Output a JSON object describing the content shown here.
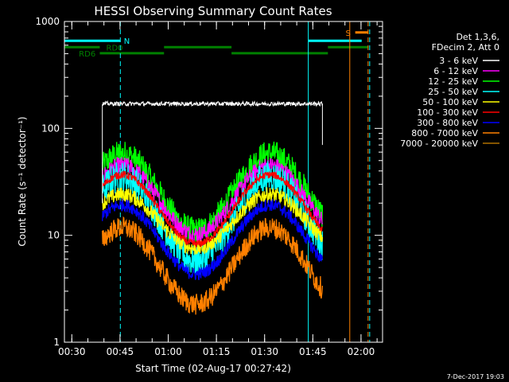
{
  "chart_data": {
    "type": "line",
    "title": "HESSI Observing Summary Count Rates",
    "xlabel": "Start Time (02-Aug-17 00:27:42)",
    "ylabel": "Count Rate (s⁻¹ detector⁻¹)",
    "x_unit": "minutes after 00:27:42",
    "xlim": [
      0,
      99
    ],
    "ylim": [
      1,
      1000
    ],
    "y_scale": "log",
    "x_ticks": [
      {
        "t": 2.3,
        "label": "00:30"
      },
      {
        "t": 17.3,
        "label": "00:45"
      },
      {
        "t": 32.3,
        "label": "01:00"
      },
      {
        "t": 47.3,
        "label": "01:15"
      },
      {
        "t": 62.3,
        "label": "01:30"
      },
      {
        "t": 77.3,
        "label": "01:45"
      },
      {
        "t": 92.3,
        "label": "02:00"
      }
    ],
    "y_ticks": [
      {
        "v": 1,
        "label": "1"
      },
      {
        "v": 10,
        "label": "10"
      },
      {
        "v": 100,
        "label": "100"
      },
      {
        "v": 1000,
        "label": "1000"
      }
    ],
    "legend_header": [
      "Det 1,3,6,",
      "FDecim 2, Att 0"
    ],
    "legend_position": "right",
    "series": [
      {
        "name": "3 - 6 keV",
        "color": "#ffffff",
        "base": 170,
        "amp": 0,
        "jitter": 0.04,
        "t0": 11.8,
        "t1": 80.3
      },
      {
        "name": "6 - 12 keV",
        "color": "#ff00ff",
        "base": 27,
        "amp": 0.45,
        "jitter": 0.16,
        "t0": 11.8,
        "t1": 80.3
      },
      {
        "name": "12 - 25 keV",
        "color": "#00ff00",
        "base": 32,
        "amp": 0.5,
        "jitter": 0.25,
        "t0": 11.8,
        "t1": 80.3
      },
      {
        "name": "25 - 50 keV",
        "color": "#00ffff",
        "base": 18,
        "amp": 0.55,
        "jitter": 0.3,
        "t0": 11.8,
        "t1": 80.3
      },
      {
        "name": "50 - 100 keV",
        "color": "#ffff00",
        "base": 17,
        "amp": 0.35,
        "jitter": 0.14,
        "t0": 11.8,
        "t1": 80.3
      },
      {
        "name": "100 - 300 keV",
        "color": "#ff0000",
        "base": 22,
        "amp": 0.45,
        "jitter": 0.07,
        "t0": 11.8,
        "t1": 80.3
      },
      {
        "name": "300 - 800 keV",
        "color": "#0000ff",
        "base": 11.5,
        "amp": 0.45,
        "jitter": 0.12,
        "t0": 11.8,
        "t1": 80.3
      },
      {
        "name": "800 - 7000 keV",
        "color": "#ff8000",
        "base": 6.5,
        "amp": 0.5,
        "jitter": 0.2,
        "t0": 11.8,
        "t1": 80.3
      },
      {
        "name": "7000 - 20000 keV",
        "color": "#b07000",
        "base": 0,
        "amp": 0,
        "jitter": 0,
        "t0": 0,
        "t1": 0
      }
    ],
    "cyan_vlines": [
      {
        "t": 0.0,
        "style": "solid"
      },
      {
        "t": 17.4,
        "style": "dashed"
      },
      {
        "t": 75.9,
        "style": "solid"
      },
      {
        "t": 95.0,
        "style": "dashed"
      }
    ],
    "orange_vlines": [
      {
        "t": 88.8,
        "style": "solid"
      },
      {
        "t": 94.5,
        "style": "dashed"
      }
    ],
    "flag_bars": [
      {
        "label": "N",
        "color": "#00ffff",
        "t0": 0.0,
        "t1": 17.4,
        "y_level": 660,
        "label_at": 18.5
      },
      {
        "label": "",
        "color": "#00ffff",
        "t0": 75.9,
        "t1": 92.5,
        "y_level": 660,
        "label_at": null
      },
      {
        "label": "S",
        "color": "#ff8000",
        "t0": 90.5,
        "t1": 94.5,
        "y_level": 790,
        "label_at": 87.5
      },
      {
        "label": "RD0",
        "color": "#008000",
        "t0": 0.0,
        "t1": 11.0,
        "y_level": 575,
        "label_at": 13.0
      },
      {
        "label": "",
        "color": "#008000",
        "t0": 31.0,
        "t1": 52.0,
        "y_level": 575,
        "label_at": null
      },
      {
        "label": "",
        "color": "#008000",
        "t0": 82.0,
        "t1": 94.5,
        "y_level": 575,
        "label_at": null
      },
      {
        "label": "RD6",
        "color": "#008000",
        "t0": 11.0,
        "t1": 31.0,
        "y_level": 505,
        "label_at": 4.5
      },
      {
        "label": "",
        "color": "#008000",
        "t0": 52.0,
        "t1": 82.0,
        "y_level": 505,
        "label_at": null
      }
    ],
    "timestamp": "7-Dec-2017 19:03"
  }
}
